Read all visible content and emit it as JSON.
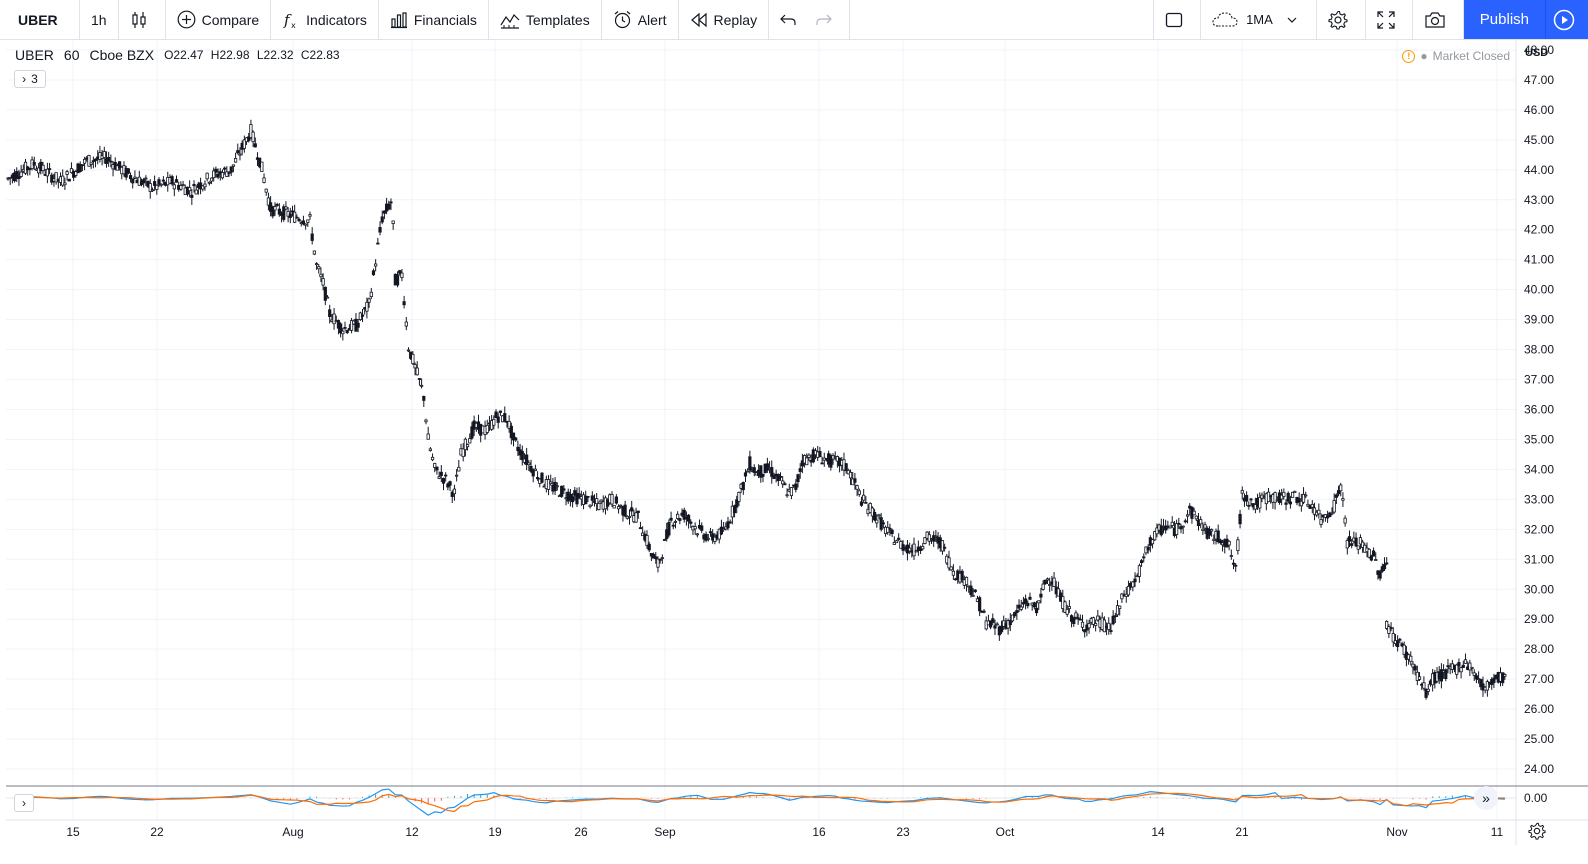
{
  "toolbar": {
    "symbol": "UBER",
    "interval": "1h",
    "compare": "Compare",
    "indicators": "Indicators",
    "financials": "Financials",
    "templates": "Templates",
    "alert": "Alert",
    "replay": "Replay",
    "layout_label": "1MA",
    "publish": "Publish"
  },
  "legend": {
    "symbol": "UBER",
    "interval": "60",
    "exchange": "Cboe BZX",
    "open": "O22.47",
    "high": "H22.98",
    "low": "L22.32",
    "close": "C22.83",
    "indicator_count": "3"
  },
  "market_status": "Market Closed",
  "currency": "USD",
  "colors": {
    "accent": "#2962ff",
    "candle": "#131722",
    "macd_line": "#2196f3",
    "signal_line": "#ff6d00",
    "hist_up": "#26a69a",
    "hist_down": "#ef5350"
  },
  "chart_data": {
    "type": "candlestick",
    "price_ticks": [
      "24.00",
      "25.00",
      "26.00",
      "27.00",
      "28.00",
      "29.00",
      "30.00",
      "31.00",
      "32.00",
      "33.00",
      "34.00",
      "35.00",
      "36.00",
      "37.00",
      "38.00",
      "39.00",
      "40.00",
      "41.00",
      "42.00",
      "43.00",
      "44.00",
      "45.00",
      "46.00",
      "47.00",
      "48.00"
    ],
    "indicator_tick": "0.00",
    "time_ticks": [
      "15",
      "22",
      "Aug",
      "12",
      "19",
      "26",
      "Sep",
      "16",
      "23",
      "Oct",
      "14",
      "21",
      "Nov",
      "11"
    ],
    "ylim": [
      23.5,
      48.4
    ],
    "price_path": [
      [
        0,
        43.7
      ],
      [
        4,
        44.2
      ],
      [
        8,
        43.6
      ],
      [
        12,
        44.3
      ],
      [
        15,
        44.4
      ],
      [
        18,
        43.9
      ],
      [
        22,
        43.4
      ],
      [
        25,
        43.6
      ],
      [
        28,
        43.3
      ],
      [
        31,
        43.8
      ],
      [
        34,
        44.0
      ],
      [
        37,
        45.3
      ],
      [
        38.5,
        44.2
      ],
      [
        40,
        42.7
      ],
      [
        43,
        42.5
      ],
      [
        46,
        42.3
      ],
      [
        47,
        40.8
      ],
      [
        48,
        40.2
      ],
      [
        49,
        39.2
      ],
      [
        51,
        38.7
      ],
      [
        53,
        38.8
      ],
      [
        55,
        39.5
      ],
      [
        57,
        42.4
      ],
      [
        58.5,
        43.0
      ],
      [
        59,
        40.3
      ],
      [
        60,
        40.5
      ],
      [
        61,
        38.1
      ],
      [
        62,
        37.4
      ],
      [
        63.3,
        36.5
      ],
      [
        64,
        35.0
      ],
      [
        65,
        34.0
      ],
      [
        66.5,
        33.7
      ],
      [
        68,
        33.2
      ],
      [
        69,
        34.5
      ],
      [
        71,
        35.4
      ],
      [
        73,
        35.3
      ],
      [
        74.5,
        35.8
      ],
      [
        76,
        35.7
      ],
      [
        77,
        35.0
      ],
      [
        78,
        34.6
      ],
      [
        80,
        34.0
      ],
      [
        82,
        33.5
      ],
      [
        84,
        33.3
      ],
      [
        86,
        33.1
      ],
      [
        88,
        33.0
      ],
      [
        90,
        32.8
      ],
      [
        92,
        33.0
      ],
      [
        94,
        32.6
      ],
      [
        96,
        32.4
      ],
      [
        98,
        31.2
      ],
      [
        99,
        30.8
      ],
      [
        100,
        31.5
      ],
      [
        101,
        32.3
      ],
      [
        103,
        32.5
      ],
      [
        105,
        32.0
      ],
      [
        107,
        31.7
      ],
      [
        109,
        31.9
      ],
      [
        110,
        32.4
      ],
      [
        112,
        33.5
      ],
      [
        113,
        34.2
      ],
      [
        114,
        33.9
      ],
      [
        116,
        34.0
      ],
      [
        118,
        33.5
      ],
      [
        119,
        33.2
      ],
      [
        120,
        33.4
      ],
      [
        121,
        34.3
      ],
      [
        123,
        34.5
      ],
      [
        125,
        34.3
      ],
      [
        127,
        34.2
      ],
      [
        128,
        34.0
      ],
      [
        130,
        33.0
      ],
      [
        132,
        32.5
      ],
      [
        134,
        31.9
      ],
      [
        136,
        31.5
      ],
      [
        138,
        31.3
      ],
      [
        140,
        31.7
      ],
      [
        142,
        31.6
      ],
      [
        144,
        30.6
      ],
      [
        146,
        30.3
      ],
      [
        148,
        29.5
      ],
      [
        149,
        28.9
      ],
      [
        151,
        28.7
      ],
      [
        153,
        29.0
      ],
      [
        155,
        29.6
      ],
      [
        157,
        29.4
      ],
      [
        158,
        30.3
      ],
      [
        159,
        30.4
      ],
      [
        160,
        29.8
      ],
      [
        162,
        29.1
      ],
      [
        164,
        28.8
      ],
      [
        166,
        28.9
      ],
      [
        168,
        28.7
      ],
      [
        170,
        29.8
      ],
      [
        172,
        30.4
      ],
      [
        174,
        31.6
      ],
      [
        176,
        32.1
      ],
      [
        178,
        32.0
      ],
      [
        180,
        32.6
      ],
      [
        181,
        32.4
      ],
      [
        183,
        31.8
      ],
      [
        185,
        31.7
      ],
      [
        186,
        31.4
      ],
      [
        187,
        30.6
      ],
      [
        188,
        33.2
      ],
      [
        190,
        32.8
      ],
      [
        192,
        33.1
      ],
      [
        194,
        33.0
      ],
      [
        196,
        33.1
      ],
      [
        198,
        32.9
      ],
      [
        199,
        32.7
      ],
      [
        200,
        32.3
      ],
      [
        202,
        32.8
      ],
      [
        203,
        33.5
      ],
      [
        204,
        31.6
      ],
      [
        206,
        31.5
      ],
      [
        208,
        31.1
      ],
      [
        209,
        30.5
      ],
      [
        210,
        30.9
      ]
    ],
    "price_path_2": [
      [
        210,
        28.9
      ],
      [
        211,
        28.4
      ],
      [
        212,
        28.2
      ],
      [
        214,
        27.5
      ],
      [
        216,
        26.5
      ],
      [
        217,
        27.0
      ],
      [
        219,
        27.2
      ],
      [
        221,
        27.4
      ],
      [
        222,
        27.6
      ],
      [
        224,
        27.0
      ],
      [
        225,
        26.6
      ],
      [
        226,
        27.0
      ],
      [
        228,
        27.1
      ]
    ]
  }
}
